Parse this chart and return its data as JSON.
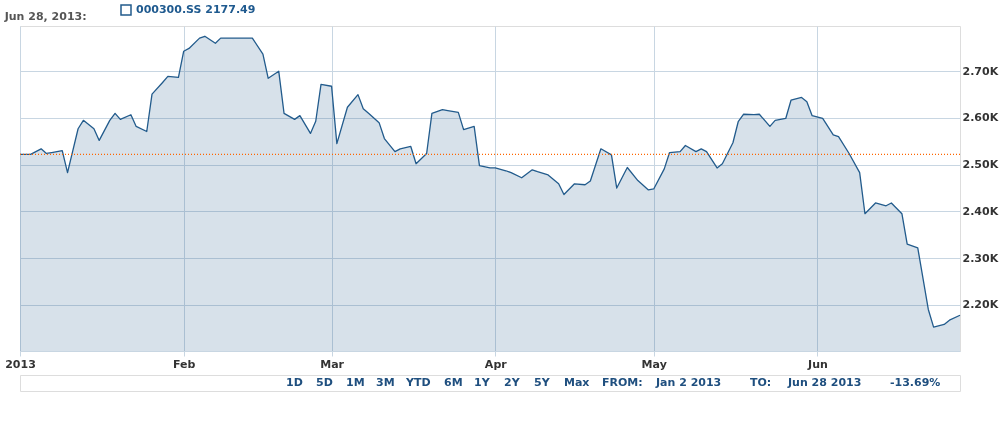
{
  "chart_data": {
    "type": "area",
    "title": "Jun 28, 2013:",
    "x": [
      "2013-01-01",
      "2013-01-03",
      "2013-01-05",
      "2013-01-06",
      "2013-01-07",
      "2013-01-09",
      "2013-01-10",
      "2013-01-12",
      "2013-01-13",
      "2013-01-15",
      "2013-01-16",
      "2013-01-18",
      "2013-01-19",
      "2013-01-20",
      "2013-01-22",
      "2013-01-23",
      "2013-01-25",
      "2013-01-26",
      "2013-01-28",
      "2013-01-29",
      "2013-01-31",
      "2013-02-01",
      "2013-02-02",
      "2013-02-04",
      "2013-02-05",
      "2013-02-07",
      "2013-02-08",
      "2013-02-11",
      "2013-02-14",
      "2013-02-16",
      "2013-02-17",
      "2013-02-19",
      "2013-02-20",
      "2013-02-22",
      "2013-02-23",
      "2013-02-25",
      "2013-02-26",
      "2013-02-27",
      "2013-03-01",
      "2013-03-02",
      "2013-03-04",
      "2013-03-06",
      "2013-03-07",
      "2013-03-08",
      "2013-03-10",
      "2013-03-11",
      "2013-03-13",
      "2013-03-14",
      "2013-03-16",
      "2013-03-17",
      "2013-03-19",
      "2013-03-20",
      "2013-03-22",
      "2013-03-23",
      "2013-03-25",
      "2013-03-26",
      "2013-03-28",
      "2013-03-29",
      "2013-03-31",
      "2013-04-01",
      "2013-04-03",
      "2013-04-04",
      "2013-04-06",
      "2013-04-08",
      "2013-04-09",
      "2013-04-11",
      "2013-04-13",
      "2013-04-14",
      "2013-04-16",
      "2013-04-18",
      "2013-04-19",
      "2013-04-21",
      "2013-04-23",
      "2013-04-24",
      "2013-04-26",
      "2013-04-28",
      "2013-04-30",
      "2013-05-01",
      "2013-05-03",
      "2013-05-04",
      "2013-05-06",
      "2013-05-07",
      "2013-05-09",
      "2013-05-10",
      "2013-05-11",
      "2013-05-13",
      "2013-05-14",
      "2013-05-16",
      "2013-05-17",
      "2013-05-18",
      "2013-05-20",
      "2013-05-21",
      "2013-05-23",
      "2013-05-24",
      "2013-05-26",
      "2013-05-27",
      "2013-05-29",
      "2013-05-30",
      "2013-05-31",
      "2013-06-02",
      "2013-06-04",
      "2013-06-05",
      "2013-06-07",
      "2013-06-09",
      "2013-06-10",
      "2013-06-12",
      "2013-06-14",
      "2013-06-15",
      "2013-06-17",
      "2013-06-18",
      "2013-06-20",
      "2013-06-22",
      "2013-06-23",
      "2013-06-25",
      "2013-06-26",
      "2013-06-28"
    ],
    "series": [
      {
        "name": "000300.SS 2177.49",
        "color": "#225b8c",
        "values": [
          2522,
          2522,
          2534,
          2524,
          2526,
          2530,
          2483,
          2577,
          2595,
          2577,
          2552,
          2595,
          2610,
          2597,
          2607,
          2582,
          2571,
          2651,
          2676,
          2689,
          2687,
          2743,
          2749,
          2771,
          2775,
          2760,
          2771,
          2771,
          2771,
          2737,
          2685,
          2700,
          2610,
          2597,
          2605,
          2567,
          2593,
          2672,
          2668,
          2545,
          2623,
          2650,
          2620,
          2610,
          2590,
          2556,
          2528,
          2534,
          2539,
          2502,
          2524,
          2610,
          2618,
          2616,
          2612,
          2575,
          2582,
          2498,
          2493,
          2493,
          2487,
          2483,
          2472,
          2489,
          2485,
          2478,
          2459,
          2436,
          2459,
          2457,
          2465,
          2534,
          2521,
          2450,
          2494,
          2466,
          2446,
          2448,
          2491,
          2526,
          2528,
          2541,
          2528,
          2534,
          2528,
          2493,
          2502,
          2547,
          2592,
          2608,
          2607,
          2608,
          2582,
          2595,
          2599,
          2638,
          2644,
          2635,
          2605,
          2599,
          2564,
          2560,
          2524,
          2483,
          2395,
          2418,
          2412,
          2418,
          2395,
          2330,
          2322,
          2190,
          2152,
          2158,
          2167,
          2177.49
        ]
      }
    ],
    "xlim": [
      "2013-01-01",
      "2013-06-28"
    ],
    "xticks": [
      {
        "value": "2013-01-01",
        "label": "2013"
      },
      {
        "value": "2013-02-01",
        "label": "Feb"
      },
      {
        "value": "2013-03-01",
        "label": "Mar"
      },
      {
        "value": "2013-04-01",
        "label": "Apr"
      },
      {
        "value": "2013-05-01",
        "label": "May"
      },
      {
        "value": "2013-06-01",
        "label": "Jun"
      }
    ],
    "ylim": [
      2101,
      2797
    ],
    "yticks": [
      {
        "value": 2200,
        "label": "2.20K"
      },
      {
        "value": 2300,
        "label": "2.30K"
      },
      {
        "value": 2400,
        "label": "2.40K"
      },
      {
        "value": 2500,
        "label": "2.50K"
      },
      {
        "value": 2600,
        "label": "2.60K"
      },
      {
        "value": 2700,
        "label": "2.70K"
      }
    ],
    "ref_lines": [
      {
        "axis": "y",
        "value": 2522,
        "color": "#ff6600",
        "line_style": "dotted"
      }
    ],
    "grid": true,
    "legend": "top left",
    "annotations": [
      "1D",
      "5D",
      "1M",
      "3M",
      "YTD",
      "6M",
      "1Y",
      "2Y",
      "5Y",
      "Max",
      "FROM:",
      "Jan 2 2013",
      "TO:",
      "Jun 28 2013",
      "-13.69%"
    ]
  }
}
